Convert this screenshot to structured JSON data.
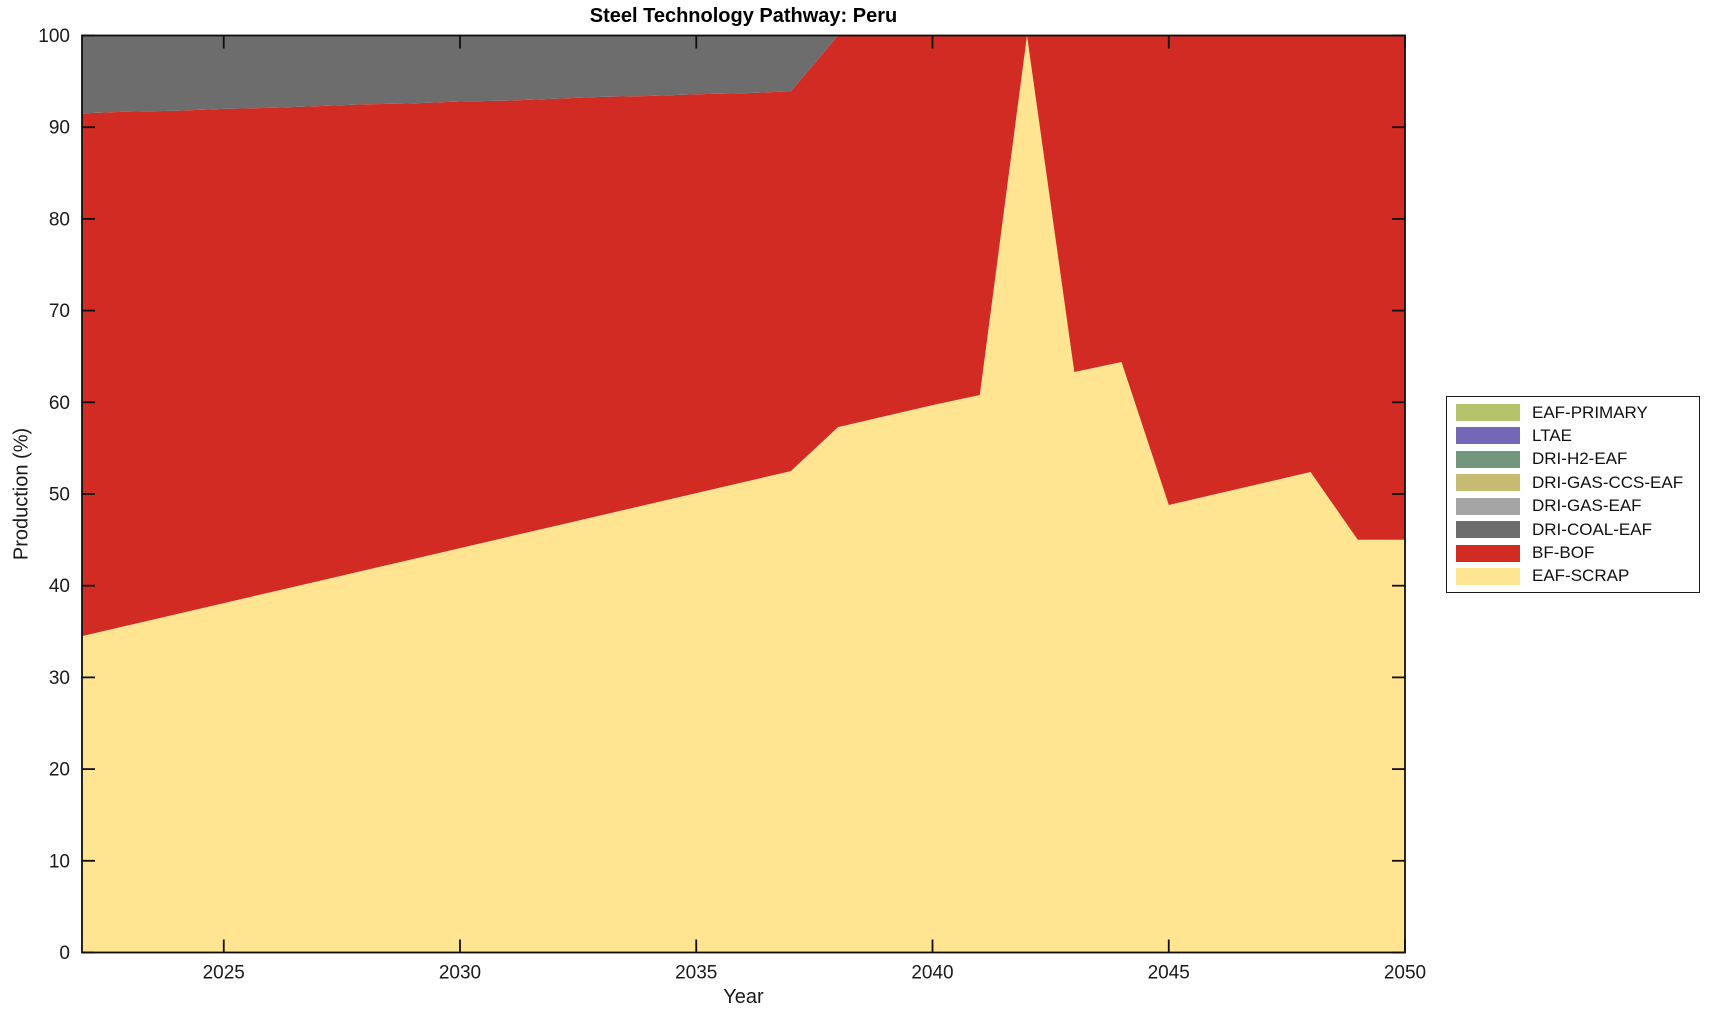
{
  "chart_data": {
    "type": "area",
    "stacked": true,
    "title": "Steel Technology Pathway: Peru",
    "xlabel": "Year",
    "ylabel": "Production (%)",
    "x_range": [
      2022,
      2050
    ],
    "y_range": [
      0,
      100
    ],
    "x_ticks": [
      2025,
      2030,
      2035,
      2040,
      2045,
      2050
    ],
    "y_ticks": [
      0,
      10,
      20,
      30,
      40,
      50,
      60,
      70,
      80,
      90,
      100
    ],
    "grid": false,
    "legend_position": "right-outside",
    "x": [
      2022,
      2023,
      2024,
      2025,
      2026,
      2027,
      2028,
      2029,
      2030,
      2031,
      2032,
      2033,
      2034,
      2035,
      2036,
      2037,
      2038,
      2039,
      2040,
      2041,
      2042,
      2043,
      2044,
      2045,
      2046,
      2047,
      2048,
      2049,
      2050
    ],
    "series": [
      {
        "name": "EAF-SCRAP",
        "color": "#ffe492",
        "values": [
          34.5,
          35.7,
          36.9,
          38.1,
          39.3,
          40.5,
          41.7,
          42.9,
          44.1,
          45.3,
          46.5,
          47.7,
          48.9,
          50.1,
          51.3,
          52.5,
          57.3,
          58.5,
          59.7,
          60.8,
          100,
          63.3,
          64.4,
          48.8,
          50,
          51.2,
          52.4,
          45,
          45
        ]
      },
      {
        "name": "BF-BOF",
        "color": "#d22b23",
        "values": [
          57,
          56,
          54.9,
          53.9,
          52.8,
          51.8,
          50.8,
          49.7,
          48.7,
          47.6,
          46.6,
          45.6,
          44.5,
          43.5,
          42.4,
          41.4,
          42.7,
          41.5,
          40.3,
          39.2,
          0,
          36.7,
          35.6,
          51.2,
          50,
          48.8,
          47.6,
          55,
          55
        ]
      },
      {
        "name": "DRI-COAL-EAF",
        "color": "#6d6d6d",
        "values": [
          8.5,
          8.3,
          8.2,
          8,
          7.9,
          7.7,
          7.5,
          7.4,
          7.2,
          7.1,
          6.9,
          6.7,
          6.6,
          6.4,
          6.3,
          6.1,
          0,
          0,
          0,
          0,
          0,
          0,
          0,
          0,
          0,
          0,
          0,
          0,
          0
        ]
      },
      {
        "name": "DRI-GAS-EAF",
        "color": "#a5a5a5",
        "values": [
          0,
          0,
          0,
          0,
          0,
          0,
          0,
          0,
          0,
          0,
          0,
          0,
          0,
          0,
          0,
          0,
          0,
          0,
          0,
          0,
          0,
          0,
          0,
          0,
          0,
          0,
          0,
          0,
          0
        ]
      },
      {
        "name": "DRI-GAS-CCS-EAF",
        "color": "#c5bb72",
        "values": [
          0,
          0,
          0,
          0,
          0,
          0,
          0,
          0,
          0,
          0,
          0,
          0,
          0,
          0,
          0,
          0,
          0,
          0,
          0,
          0,
          0,
          0,
          0,
          0,
          0,
          0,
          0,
          0,
          0
        ]
      },
      {
        "name": "DRI-H2-EAF",
        "color": "#73967f",
        "values": [
          0,
          0,
          0,
          0,
          0,
          0,
          0,
          0,
          0,
          0,
          0,
          0,
          0,
          0,
          0,
          0,
          0,
          0,
          0,
          0,
          0,
          0,
          0,
          0,
          0,
          0,
          0,
          0,
          0
        ]
      },
      {
        "name": "LTAE",
        "color": "#7468b6",
        "values": [
          0,
          0,
          0,
          0,
          0,
          0,
          0,
          0,
          0,
          0,
          0,
          0,
          0,
          0,
          0,
          0,
          0,
          0,
          0,
          0,
          0,
          0,
          0,
          0,
          0,
          0,
          0,
          0,
          0
        ]
      },
      {
        "name": "EAF-PRIMARY",
        "color": "#b5c36a",
        "values": [
          0,
          0,
          0,
          0,
          0,
          0,
          0,
          0,
          0,
          0,
          0,
          0,
          0,
          0,
          0,
          0,
          0,
          0,
          0,
          0,
          0,
          0,
          0,
          0,
          0,
          0,
          0,
          0,
          0
        ]
      }
    ]
  },
  "legend": {
    "items": [
      {
        "label": "EAF-PRIMARY",
        "color": "#b5c36a"
      },
      {
        "label": "LTAE",
        "color": "#7468b6"
      },
      {
        "label": "DRI-H2-EAF",
        "color": "#73967f"
      },
      {
        "label": "DRI-GAS-CCS-EAF",
        "color": "#c5bb72"
      },
      {
        "label": "DRI-GAS-EAF",
        "color": "#a5a5a5"
      },
      {
        "label": "DRI-COAL-EAF",
        "color": "#6d6d6d"
      },
      {
        "label": "BF-BOF",
        "color": "#d22b23"
      },
      {
        "label": "EAF-SCRAP",
        "color": "#ffe492"
      }
    ]
  }
}
